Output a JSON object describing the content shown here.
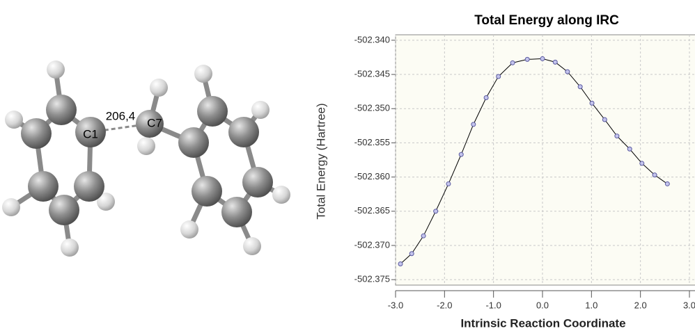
{
  "molecule": {
    "bond_label": "206,4",
    "atom_labels": [
      "C1",
      "C7"
    ]
  },
  "chart_data": {
    "type": "line",
    "title": "Total Energy along IRC",
    "x_label": "Intrinsic Reaction Coordinate",
    "y_label": "Total Energy (Hartree)",
    "x": [
      -2.9,
      -2.67,
      -2.43,
      -2.18,
      -1.92,
      -1.66,
      -1.41,
      -1.15,
      -0.9,
      -0.61,
      -0.31,
      0,
      0.26,
      0.51,
      0.77,
      1.01,
      1.27,
      1.52,
      1.78,
      2.03,
      2.29,
      2.55
    ],
    "series": [
      {
        "color": "#000000",
        "marker_color": "#c4c4ec",
        "values": [
          -502.3727,
          -502.3712,
          -502.3686,
          -502.365,
          -502.361,
          -502.3567,
          -502.3523,
          -502.3484,
          -502.3453,
          -502.3433,
          -502.3428,
          -502.3427,
          -502.3432,
          -502.3446,
          -502.3468,
          -502.3492,
          -502.3516,
          -502.354,
          -502.3559,
          -502.358,
          -502.3597,
          -502.361
        ]
      }
    ],
    "xlim": [
      -3.0,
      3.0
    ],
    "xticks": [
      {
        "value": -3,
        "label": "-3.0"
      },
      {
        "value": -2,
        "label": "-2.0"
      },
      {
        "value": -1,
        "label": "-1.0"
      },
      {
        "value": 0,
        "label": "0.0"
      },
      {
        "value": 1,
        "label": "1.0"
      },
      {
        "value": 2,
        "label": "2.0"
      },
      {
        "value": 3,
        "label": "3.0"
      }
    ],
    "ylim": [
      -502.3758,
      -502.3392
    ],
    "yticks": [
      {
        "value": -502.34,
        "label": "-502.340"
      },
      {
        "value": -502.345,
        "label": "-502.345"
      },
      {
        "value": -502.35,
        "label": "-502.350"
      },
      {
        "value": -502.355,
        "label": "-502.355"
      },
      {
        "value": -502.36,
        "label": "-502.360"
      },
      {
        "value": -502.365,
        "label": "-502.365"
      },
      {
        "value": -502.37,
        "label": "-502.370"
      },
      {
        "value": -502.375,
        "label": "-502.375"
      }
    ],
    "grid": true
  }
}
